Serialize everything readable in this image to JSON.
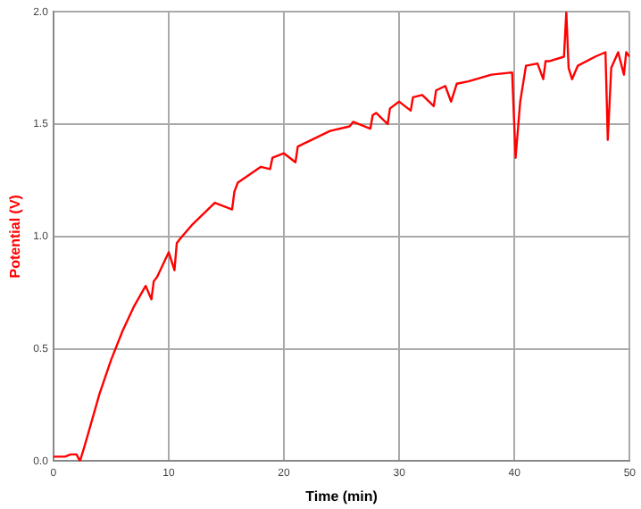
{
  "chart_data": {
    "type": "line",
    "xlabel": "Time (min)",
    "ylabel": "Potential (V)",
    "x": [
      0,
      1,
      1.5,
      2,
      2.3,
      2.6,
      3,
      4,
      5,
      6,
      7,
      8,
      8.5,
      8.7,
      9,
      10,
      10.5,
      10.7,
      11,
      12,
      14,
      15.5,
      15.7,
      16,
      18,
      18.8,
      19,
      20,
      21,
      21.2,
      22,
      24,
      25.7,
      26,
      27.5,
      27.7,
      28,
      29,
      29.2,
      30,
      31,
      31.2,
      32,
      33,
      33.2,
      34,
      34.5,
      35,
      36,
      38,
      39.8,
      40.1,
      40.5,
      41,
      42,
      42.5,
      42.7,
      43,
      44.3,
      44.5,
      44.7,
      45,
      45.5,
      47,
      47.9,
      48.1,
      48.4,
      49,
      49.5,
      49.7,
      50
    ],
    "series": [
      {
        "color": "#ff0000",
        "values": [
          0.02,
          0.02,
          0.03,
          0.03,
          0.0,
          0.05,
          0.12,
          0.3,
          0.45,
          0.58,
          0.69,
          0.78,
          0.72,
          0.8,
          0.82,
          0.93,
          0.85,
          0.97,
          0.99,
          1.05,
          1.15,
          1.12,
          1.2,
          1.24,
          1.31,
          1.3,
          1.35,
          1.37,
          1.33,
          1.4,
          1.42,
          1.47,
          1.49,
          1.51,
          1.48,
          1.54,
          1.55,
          1.5,
          1.57,
          1.6,
          1.56,
          1.62,
          1.63,
          1.58,
          1.65,
          1.67,
          1.6,
          1.68,
          1.69,
          1.72,
          1.73,
          1.35,
          1.6,
          1.76,
          1.77,
          1.7,
          1.78,
          1.78,
          1.8,
          2.0,
          1.75,
          1.7,
          1.76,
          1.8,
          1.82,
          1.43,
          1.75,
          1.82,
          1.72,
          1.82,
          1.8
        ]
      }
    ],
    "xlim": [
      0,
      50
    ],
    "xticks": [
      0,
      10,
      20,
      30,
      40,
      50
    ],
    "ylim": [
      0,
      2
    ],
    "yticks": [
      {
        "value": 0,
        "label": "0.0"
      },
      {
        "value": 0.5,
        "label": "0.5"
      },
      {
        "value": 1,
        "label": "1.0"
      },
      {
        "value": 1.5,
        "label": "1.5"
      },
      {
        "value": 2,
        "label": "2.0"
      }
    ],
    "grid": true,
    "marker": "none",
    "line_style": "solid"
  }
}
